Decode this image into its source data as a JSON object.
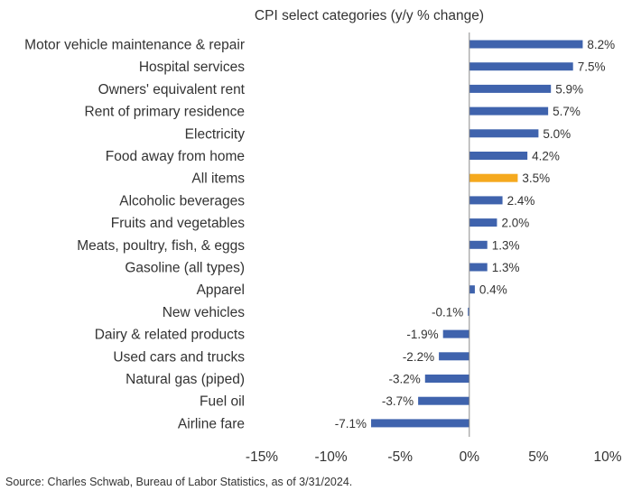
{
  "chart_data": {
    "type": "bar",
    "orientation": "horizontal",
    "title": "CPI select categories (y/y % change)",
    "categories": [
      "Motor vehicle maintenance & repair",
      "Hospital services",
      "Owners' equivalent rent",
      "Rent of primary residence",
      "Electricity",
      "Food away from home",
      "All items",
      "Alcoholic beverages",
      "Fruits and vegetables",
      "Meats, poultry, fish, & eggs",
      "Gasoline (all types)",
      "Apparel",
      "New vehicles",
      "Dairy & related products",
      "Used cars and trucks",
      "Natural gas (piped)",
      "Fuel oil",
      "Airline fare"
    ],
    "values": [
      8.2,
      7.5,
      5.9,
      5.7,
      5.0,
      4.2,
      3.5,
      2.4,
      2.0,
      1.3,
      1.3,
      0.4,
      -0.1,
      -1.9,
      -2.2,
      -3.2,
      -3.7,
      -7.1
    ],
    "value_labels": [
      "8.2%",
      "7.5%",
      "5.9%",
      "5.7%",
      "5.0%",
      "4.2%",
      "3.5%",
      "2.4%",
      "2.0%",
      "1.3%",
      "1.3%",
      "0.4%",
      "-0.1%",
      "-1.9%",
      "-2.2%",
      "-3.2%",
      "-3.7%",
      "-7.1%"
    ],
    "highlight_category": "All items",
    "xlim": [
      -15,
      10
    ],
    "x_ticks": [
      -15,
      -10,
      -5,
      0,
      5,
      10
    ],
    "x_tick_labels": [
      "-15%",
      "-10%",
      "-5%",
      "0%",
      "5%",
      "10%"
    ],
    "grid": false,
    "colors": {
      "bar": "#3f63ad",
      "highlight": "#f5a91e",
      "axis": "#8a8a8a"
    }
  },
  "source": "Source: Charles Schwab, Bureau of Labor Statistics, as of 3/31/2024."
}
